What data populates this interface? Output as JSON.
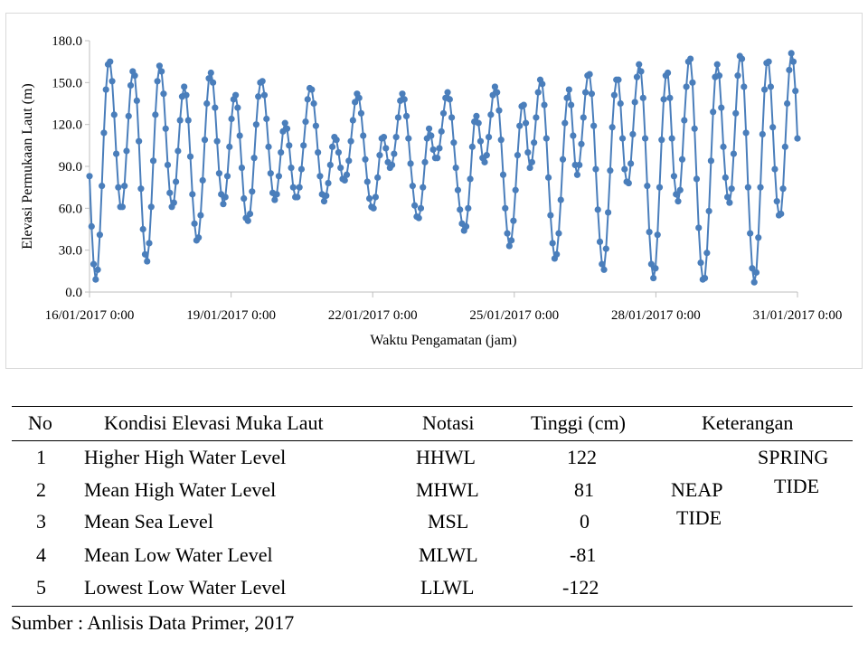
{
  "chart_data": {
    "type": "line",
    "title": "",
    "xlabel": "Waktu Pengamatan (jam)",
    "ylabel": "Elevasi Permukaan Laut (m)",
    "x_start": "16/01/2017 0:00",
    "x_end": "31/01/2017 0:00",
    "x_tick_labels": [
      "16/01/2017 0:00",
      "19/01/2017 0:00",
      "22/01/2017 0:00",
      "25/01/2017 0:00",
      "28/01/2017 0:00",
      "31/01/2017 0:00"
    ],
    "y_tick_labels": [
      "0.0",
      "30.0",
      "60.0",
      "90.0",
      "120.0",
      "150.0",
      "180.0"
    ],
    "ylim": [
      0,
      180
    ],
    "grid": false,
    "legend": "none",
    "series": [
      {
        "color": "#4a7ebb",
        "values": [
          83,
          47,
          20,
          9,
          16,
          41,
          76,
          114,
          145,
          163,
          165,
          151,
          127,
          99,
          75,
          61,
          61,
          76,
          101,
          126,
          148,
          158,
          155,
          137,
          108,
          74,
          45,
          27,
          22,
          35,
          61,
          94,
          127,
          151,
          162,
          158,
          142,
          117,
          91,
          71,
          61,
          64,
          79,
          101,
          123,
          140,
          147,
          141,
          123,
          97,
          70,
          49,
          37,
          39,
          55,
          80,
          109,
          135,
          153,
          157,
          150,
          132,
          108,
          85,
          70,
          63,
          68,
          83,
          104,
          124,
          138,
          141,
          132,
          112,
          89,
          67,
          53,
          51,
          56,
          72,
          96,
          120,
          140,
          150,
          151,
          141,
          124,
          104,
          85,
          71,
          66,
          70,
          83,
          100,
          115,
          121,
          117,
          105,
          89,
          75,
          68,
          68,
          75,
          88,
          105,
          122,
          138,
          146,
          145,
          135,
          119,
          100,
          83,
          70,
          65,
          69,
          78,
          91,
          104,
          111,
          109,
          100,
          89,
          81,
          80,
          84,
          94,
          108,
          123,
          136,
          142,
          139,
          128,
          112,
          95,
          79,
          67,
          61,
          60,
          68,
          82,
          98,
          110,
          111,
          103,
          93,
          89,
          91,
          99,
          111,
          125,
          137,
          142,
          138,
          126,
          110,
          92,
          76,
          62,
          54,
          53,
          60,
          75,
          93,
          110,
          117,
          112,
          102,
          96,
          96,
          103,
          115,
          128,
          139,
          143,
          138,
          125,
          107,
          89,
          73,
          59,
          49,
          44,
          47,
          60,
          81,
          104,
          122,
          126,
          121,
          108,
          96,
          93,
          98,
          111,
          127,
          141,
          147,
          143,
          130,
          109,
          84,
          60,
          42,
          33,
          37,
          51,
          73,
          98,
          119,
          133,
          134,
          121,
          100,
          89,
          93,
          107,
          125,
          143,
          152,
          149,
          134,
          110,
          82,
          55,
          35,
          24,
          27,
          42,
          66,
          95,
          121,
          139,
          145,
          134,
          112,
          91,
          84,
          91,
          106,
          125,
          143,
          155,
          156,
          142,
          119,
          88,
          59,
          36,
          20,
          16,
          31,
          57,
          87,
          118,
          141,
          152,
          152,
          135,
          110,
          88,
          79,
          78,
          92,
          113,
          136,
          154,
          163,
          158,
          139,
          110,
          76,
          43,
          20,
          10,
          17,
          41,
          75,
          109,
          138,
          155,
          157,
          139,
          110,
          83,
          70,
          65,
          73,
          95,
          123,
          147,
          165,
          167,
          150,
          117,
          81,
          46,
          21,
          9,
          10,
          28,
          58,
          94,
          129,
          154,
          163,
          155,
          132,
          104,
          82,
          68,
          64,
          74,
          99,
          128,
          155,
          169,
          167,
          147,
          114,
          75,
          42,
          17,
          7,
          14,
          39,
          75,
          113,
          145,
          164,
          165,
          147,
          118,
          88,
          65,
          55,
          56,
          74,
          104,
          135,
          159,
          171,
          165,
          144,
          110
        ]
      }
    ]
  },
  "table": {
    "headers": [
      "No",
      "Kondisi Elevasi Muka Laut",
      "Notasi",
      "Tinggi (cm)",
      "Keterangan"
    ],
    "rows": [
      {
        "no": "1",
        "kondisi": "Higher High Water Level",
        "notasi": "HHWL",
        "tinggi": "122"
      },
      {
        "no": "2",
        "kondisi": "Mean High Water Level",
        "notasi": "MHWL",
        "tinggi": "81"
      },
      {
        "no": "3",
        "kondisi": "Mean Sea Level",
        "notasi": "MSL",
        "tinggi": "0"
      },
      {
        "no": "4",
        "kondisi": "Mean Low Water Level",
        "notasi": "MLWL",
        "tinggi": "-81"
      },
      {
        "no": "5",
        "kondisi": "Lowest Low Water Level",
        "notasi": "LLWL",
        "tinggi": "-122"
      }
    ],
    "neap_line1": "NEAP",
    "neap_line2": "TIDE",
    "spring_line1": "SPRING",
    "spring_line2": "TIDE"
  },
  "source_note": "Sumber : Anlisis Data Primer, 2017"
}
